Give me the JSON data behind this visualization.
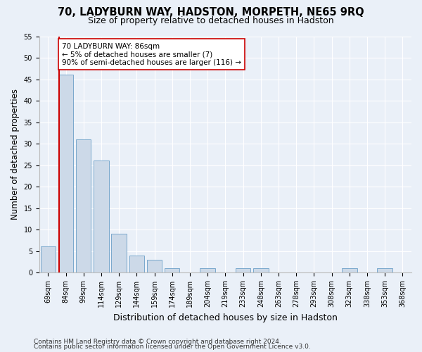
{
  "title1": "70, LADYBURN WAY, HADSTON, MORPETH, NE65 9RQ",
  "title2": "Size of property relative to detached houses in Hadston",
  "xlabel": "Distribution of detached houses by size in Hadston",
  "ylabel": "Number of detached properties",
  "categories": [
    "69sqm",
    "84sqm",
    "99sqm",
    "114sqm",
    "129sqm",
    "144sqm",
    "159sqm",
    "174sqm",
    "189sqm",
    "204sqm",
    "219sqm",
    "233sqm",
    "248sqm",
    "263sqm",
    "278sqm",
    "293sqm",
    "308sqm",
    "323sqm",
    "338sqm",
    "353sqm",
    "368sqm"
  ],
  "values": [
    6,
    46,
    31,
    26,
    9,
    4,
    3,
    1,
    0,
    1,
    0,
    1,
    1,
    0,
    0,
    0,
    0,
    1,
    0,
    1,
    0
  ],
  "bar_color": "#ccd9e8",
  "bar_edge_color": "#7aa8cc",
  "vline_color": "#cc0000",
  "vline_x_index": 0.62,
  "annotation_text": "70 LADYBURN WAY: 86sqm\n← 5% of detached houses are smaller (7)\n90% of semi-detached houses are larger (116) →",
  "annotation_box_color": "#ffffff",
  "annotation_box_edge": "#cc0000",
  "ylim": [
    0,
    55
  ],
  "yticks": [
    0,
    5,
    10,
    15,
    20,
    25,
    30,
    35,
    40,
    45,
    50,
    55
  ],
  "footnote1": "Contains HM Land Registry data © Crown copyright and database right 2024.",
  "footnote2": "Contains public sector information licensed under the Open Government Licence v3.0.",
  "bg_color": "#eaf0f8",
  "plot_bg_color": "#eaf0f8",
  "title1_fontsize": 10.5,
  "title2_fontsize": 9,
  "xlabel_fontsize": 9,
  "ylabel_fontsize": 8.5,
  "tick_fontsize": 7,
  "annot_fontsize": 7.5,
  "footnote_fontsize": 6.5
}
